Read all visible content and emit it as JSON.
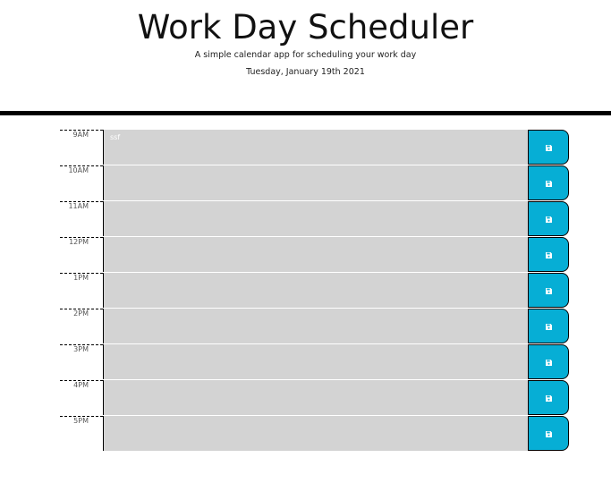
{
  "header": {
    "title": "Work Day Scheduler",
    "subtitle": "A simple calendar app for scheduling your work day",
    "current_day": "Tuesday, January 19th 2021"
  },
  "timeblocks": [
    {
      "hour": "9AM",
      "text": "ssf"
    },
    {
      "hour": "10AM",
      "text": ""
    },
    {
      "hour": "11AM",
      "text": ""
    },
    {
      "hour": "12PM",
      "text": ""
    },
    {
      "hour": "1PM",
      "text": ""
    },
    {
      "hour": "2PM",
      "text": ""
    },
    {
      "hour": "3PM",
      "text": ""
    },
    {
      "hour": "4PM",
      "text": ""
    },
    {
      "hour": "5PM",
      "text": ""
    }
  ],
  "icons": {
    "save": "save-icon"
  },
  "colors": {
    "save_button": "#06aed5",
    "textarea_bg": "#d3d3d3",
    "header_rule": "#000000"
  }
}
